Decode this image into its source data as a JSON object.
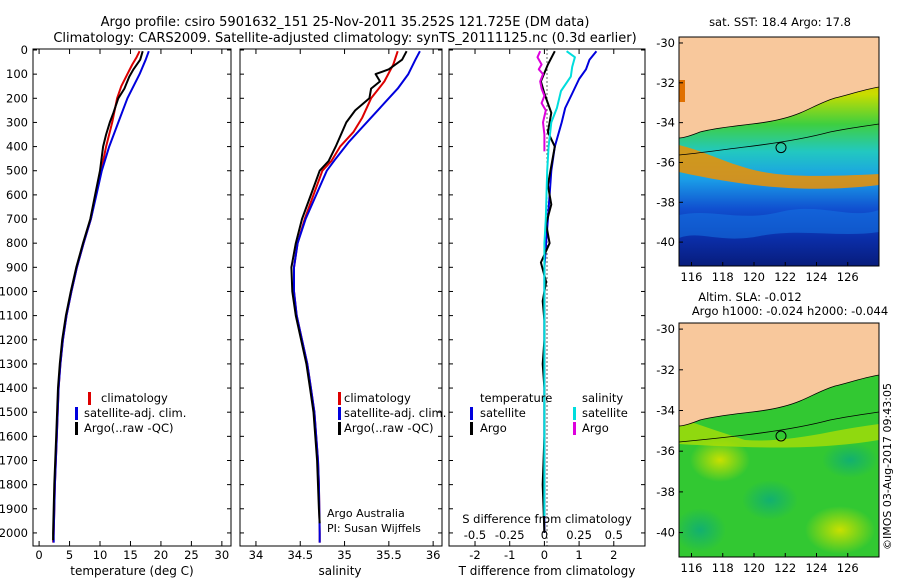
{
  "header": {
    "line1": "Argo profile: csiro 5901632_151 25-Nov-2011 35.252S 121.725E (DM data)",
    "line2": "Climatology: CARS2009. Satellite-adjusted climatology: synTS_20111125.nc (0.3d earlier)"
  },
  "depth_ticks": [
    "0",
    "100",
    "200",
    "300",
    "400",
    "500",
    "600",
    "700",
    "800",
    "900",
    "1000",
    "1100",
    "1200",
    "1300",
    "1400",
    "1500",
    "1600",
    "1700",
    "1800",
    "1900",
    "2000"
  ],
  "credit": "©IMOS 03-Aug-2017 09:43:05",
  "colors": {
    "climatology": "#dd0000",
    "satellite": "#0000dd",
    "argo": "#000000",
    "s_satellite": "#00dddd",
    "s_argo": "#dd00dd",
    "land": "#f8c89c"
  },
  "chart_data": [
    {
      "type": "line",
      "xlabel": "temperature (deg C)",
      "xticks": [
        "0",
        "5",
        "10",
        "15",
        "20",
        "25",
        "30"
      ],
      "xlim": [
        -1,
        31.5
      ],
      "ylim": [
        2050,
        0
      ],
      "legend": [
        "climatology",
        "satellite-adj. clim.",
        "Argo(..raw -QC)"
      ],
      "series": [
        {
          "name": "climatology",
          "color": "#dd0000",
          "points": [
            [
              16.5,
              5
            ],
            [
              16,
              30
            ],
            [
              15.3,
              60
            ],
            [
              14.5,
              100
            ],
            [
              13.5,
              150
            ],
            [
              12.8,
              200
            ],
            [
              12,
              300
            ],
            [
              11,
              400
            ],
            [
              10.2,
              500
            ],
            [
              9.3,
              600
            ],
            [
              8.5,
              700
            ],
            [
              7.3,
              800
            ],
            [
              6.2,
              900
            ],
            [
              5.3,
              1000
            ],
            [
              4.5,
              1100
            ],
            [
              3.9,
              1200
            ],
            [
              3.5,
              1300
            ],
            [
              3.2,
              1400
            ],
            [
              2.9,
              1600
            ],
            [
              2.6,
              1800
            ],
            [
              2.4,
              2000
            ],
            [
              2.3,
              2040
            ]
          ]
        },
        {
          "name": "satellite-adj. clim.",
          "color": "#0000dd",
          "points": [
            [
              18,
              5
            ],
            [
              17.5,
              40
            ],
            [
              16.5,
              100
            ],
            [
              15.5,
              150
            ],
            [
              14.5,
              200
            ],
            [
              13,
              300
            ],
            [
              11.5,
              400
            ],
            [
              10.3,
              500
            ],
            [
              9.4,
              600
            ],
            [
              8.5,
              700
            ],
            [
              7.3,
              800
            ],
            [
              6.2,
              900
            ],
            [
              5.3,
              1000
            ],
            [
              4.5,
              1100
            ],
            [
              3.9,
              1200
            ],
            [
              3.5,
              1300
            ],
            [
              3.2,
              1400
            ],
            [
              2.9,
              1600
            ],
            [
              2.6,
              1800
            ],
            [
              2.4,
              2000
            ],
            [
              2.4,
              2040
            ]
          ]
        },
        {
          "name": "Argo(..raw -QC)",
          "color": "#000000",
          "points": [
            [
              17,
              5
            ],
            [
              16.6,
              40
            ],
            [
              15.5,
              80
            ],
            [
              14.8,
              110
            ],
            [
              14,
              160
            ],
            [
              13,
              200
            ],
            [
              12.2,
              260
            ],
            [
              11.6,
              300
            ],
            [
              11,
              350
            ],
            [
              10.5,
              400
            ],
            [
              10,
              500
            ],
            [
              9.2,
              600
            ],
            [
              8.4,
              700
            ],
            [
              7.2,
              800
            ],
            [
              6.1,
              900
            ],
            [
              5.2,
              1000
            ],
            [
              4.4,
              1100
            ],
            [
              3.8,
              1200
            ],
            [
              3.4,
              1300
            ],
            [
              3.1,
              1400
            ],
            [
              2.8,
              1600
            ],
            [
              2.5,
              1800
            ],
            [
              2.3,
              2000
            ],
            [
              2.3,
              2030
            ]
          ]
        }
      ]
    },
    {
      "type": "line",
      "xlabel": "salinity",
      "xticks": [
        "34",
        "34.5",
        "35",
        "35.5",
        "36"
      ],
      "xlim": [
        33.82,
        36.1
      ],
      "ylim": [
        2050,
        0
      ],
      "legend": [
        "climatology",
        "satellite-adj. clim.",
        "Argo(..raw -QC)"
      ],
      "annotation": [
        "Argo Australia",
        "PI: Susan Wijffels"
      ],
      "series": [
        {
          "name": "climatology",
          "color": "#dd0000",
          "points": [
            [
              35.6,
              5
            ],
            [
              35.55,
              60
            ],
            [
              35.45,
              130
            ],
            [
              35.3,
              200
            ],
            [
              35.2,
              280
            ],
            [
              35.1,
              340
            ],
            [
              34.95,
              400
            ],
            [
              34.85,
              460
            ],
            [
              34.75,
              500
            ],
            [
              34.65,
              600
            ],
            [
              34.55,
              700
            ],
            [
              34.47,
              800
            ],
            [
              34.43,
              900
            ],
            [
              34.43,
              1000
            ],
            [
              34.46,
              1100
            ],
            [
              34.52,
              1200
            ],
            [
              34.58,
              1300
            ],
            [
              34.62,
              1400
            ],
            [
              34.66,
              1500
            ],
            [
              34.68,
              1600
            ],
            [
              34.7,
              1700
            ],
            [
              34.71,
              1800
            ],
            [
              34.72,
              2000
            ],
            [
              34.72,
              2040
            ]
          ]
        },
        {
          "name": "satellite-adj. clim.",
          "color": "#0000dd",
          "points": [
            [
              35.85,
              5
            ],
            [
              35.8,
              40
            ],
            [
              35.72,
              100
            ],
            [
              35.6,
              160
            ],
            [
              35.45,
              220
            ],
            [
              35.25,
              300
            ],
            [
              35.05,
              380
            ],
            [
              34.9,
              450
            ],
            [
              34.8,
              500
            ],
            [
              34.68,
              600
            ],
            [
              34.56,
              700
            ],
            [
              34.47,
              800
            ],
            [
              34.43,
              900
            ],
            [
              34.43,
              1000
            ],
            [
              34.46,
              1100
            ],
            [
              34.52,
              1200
            ],
            [
              34.58,
              1300
            ],
            [
              34.62,
              1400
            ],
            [
              34.66,
              1500
            ],
            [
              34.68,
              1600
            ],
            [
              34.7,
              1700
            ],
            [
              34.71,
              1800
            ],
            [
              34.72,
              2000
            ],
            [
              34.72,
              2040
            ]
          ]
        },
        {
          "name": "Argo(..raw -QC)",
          "color": "#000000",
          "points": [
            [
              35.7,
              5
            ],
            [
              35.65,
              40
            ],
            [
              35.5,
              80
            ],
            [
              35.35,
              100
            ],
            [
              35.4,
              130
            ],
            [
              35.3,
              160
            ],
            [
              35.28,
              200
            ],
            [
              35.12,
              250
            ],
            [
              35.02,
              300
            ],
            [
              34.9,
              400
            ],
            [
              34.82,
              460
            ],
            [
              34.72,
              500
            ],
            [
              34.62,
              600
            ],
            [
              34.52,
              700
            ],
            [
              34.45,
              800
            ],
            [
              34.4,
              900
            ],
            [
              34.41,
              1000
            ],
            [
              34.45,
              1100
            ],
            [
              34.51,
              1200
            ],
            [
              34.57,
              1300
            ],
            [
              34.61,
              1400
            ],
            [
              34.65,
              1500
            ],
            [
              34.67,
              1600
            ],
            [
              34.69,
              1700
            ],
            [
              34.7,
              1800
            ],
            [
              34.71,
              1900
            ],
            [
              34.72,
              1960
            ]
          ]
        }
      ]
    },
    {
      "type": "line",
      "xlabel": "T difference from climatology",
      "xticks": [
        "-2",
        "-1",
        "0",
        "1",
        "2"
      ],
      "xlim": [
        -2.75,
        2.9
      ],
      "top_label": "S difference from climatology",
      "top_ticks": [
        "-0.5",
        "-0.25",
        "0",
        "0.25",
        "0.5"
      ],
      "ylim": [
        2050,
        0
      ],
      "legend_t_title": "temperature",
      "legend_t": [
        "satellite",
        "Argo"
      ],
      "legend_s_title": "salinity",
      "legend_s": [
        "satellite",
        "Argo"
      ],
      "series": [
        {
          "name": "satellite",
          "color": "#0000dd",
          "points": [
            [
              1.5,
              5
            ],
            [
              1.3,
              40
            ],
            [
              1.2,
              80
            ],
            [
              1.0,
              120
            ],
            [
              0.8,
              180
            ],
            [
              0.6,
              240
            ],
            [
              0.5,
              300
            ],
            [
              0.3,
              400
            ],
            [
              0.2,
              500
            ],
            [
              0.15,
              600
            ],
            [
              0.1,
              700
            ],
            [
              0.05,
              800
            ],
            [
              0,
              900
            ],
            [
              0,
              1000
            ],
            [
              0,
              1200
            ],
            [
              0,
              1400
            ],
            [
              0,
              1600
            ],
            [
              0,
              1800
            ],
            [
              0,
              2000
            ]
          ]
        },
        {
          "name": "Argo",
          "color": "#000000",
          "points": [
            [
              0.3,
              5
            ],
            [
              0.1,
              60
            ],
            [
              -0.1,
              130
            ],
            [
              0,
              180
            ],
            [
              0.2,
              260
            ],
            [
              0.1,
              340
            ],
            [
              0.3,
              400
            ],
            [
              0.2,
              480
            ],
            [
              0.1,
              560
            ],
            [
              0.2,
              640
            ],
            [
              0.05,
              720
            ],
            [
              0.15,
              800
            ],
            [
              -0.1,
              880
            ],
            [
              0.05,
              960
            ],
            [
              -0.05,
              1040
            ],
            [
              0,
              1120
            ],
            [
              0,
              1200
            ],
            [
              -0.05,
              1300
            ],
            [
              0,
              1400
            ],
            [
              0,
              1600
            ],
            [
              -0.05,
              1800
            ],
            [
              0,
              2000
            ]
          ]
        },
        {
          "name": "satellite",
          "color": "#00dddd",
          "points": [
            [
              0.16,
              5
            ],
            [
              0.22,
              30
            ],
            [
              0.2,
              70
            ],
            [
              0.19,
              110
            ],
            [
              0.12,
              170
            ],
            [
              0.09,
              240
            ],
            [
              0.05,
              300
            ],
            [
              0.03,
              400
            ],
            [
              0.02,
              500
            ],
            [
              0.015,
              600
            ],
            [
              0.01,
              700
            ],
            [
              0,
              800
            ],
            [
              0,
              1000
            ],
            [
              0,
              1200
            ],
            [
              0,
              1500
            ],
            [
              0,
              1800
            ],
            [
              0,
              1930
            ]
          ]
        },
        {
          "name": "Argo",
          "color": "#dd00dd",
          "points": [
            [
              -0.03,
              5
            ],
            [
              -0.05,
              30
            ],
            [
              -0.02,
              60
            ],
            [
              -0.04,
              80
            ],
            [
              -0.01,
              100
            ],
            [
              -0.03,
              130
            ],
            [
              -0.02,
              160
            ],
            [
              0,
              190
            ],
            [
              -0.02,
              220
            ],
            [
              0.01,
              250
            ],
            [
              -0.01,
              300
            ],
            [
              0,
              350
            ],
            [
              0,
              420
            ]
          ]
        }
      ]
    },
    {
      "type": "heatmap",
      "title": "sat. SST: 18.4  Argo: 17.8",
      "xticks": [
        "116",
        "118",
        "120",
        "122",
        "124",
        "126"
      ],
      "yticks": [
        "-30",
        "-32",
        "-34",
        "-36",
        "-38",
        "-40"
      ],
      "xlim": [
        115.2,
        128
      ],
      "ylim": [
        -41.2,
        -29.7
      ],
      "argo_position": {
        "lon": 121.725,
        "lat": -35.252
      }
    },
    {
      "type": "heatmap",
      "title": "Altim. SLA: -0.012",
      "subtitle": "Argo h1000: -0.024  h2000: -0.044",
      "xticks": [
        "116",
        "118",
        "120",
        "122",
        "124",
        "126"
      ],
      "yticks": [
        "-30",
        "-32",
        "-34",
        "-36",
        "-38",
        "-40"
      ],
      "xlim": [
        115.2,
        128
      ],
      "ylim": [
        -41.2,
        -29.7
      ],
      "argo_position": {
        "lon": 121.725,
        "lat": -35.252
      }
    }
  ]
}
